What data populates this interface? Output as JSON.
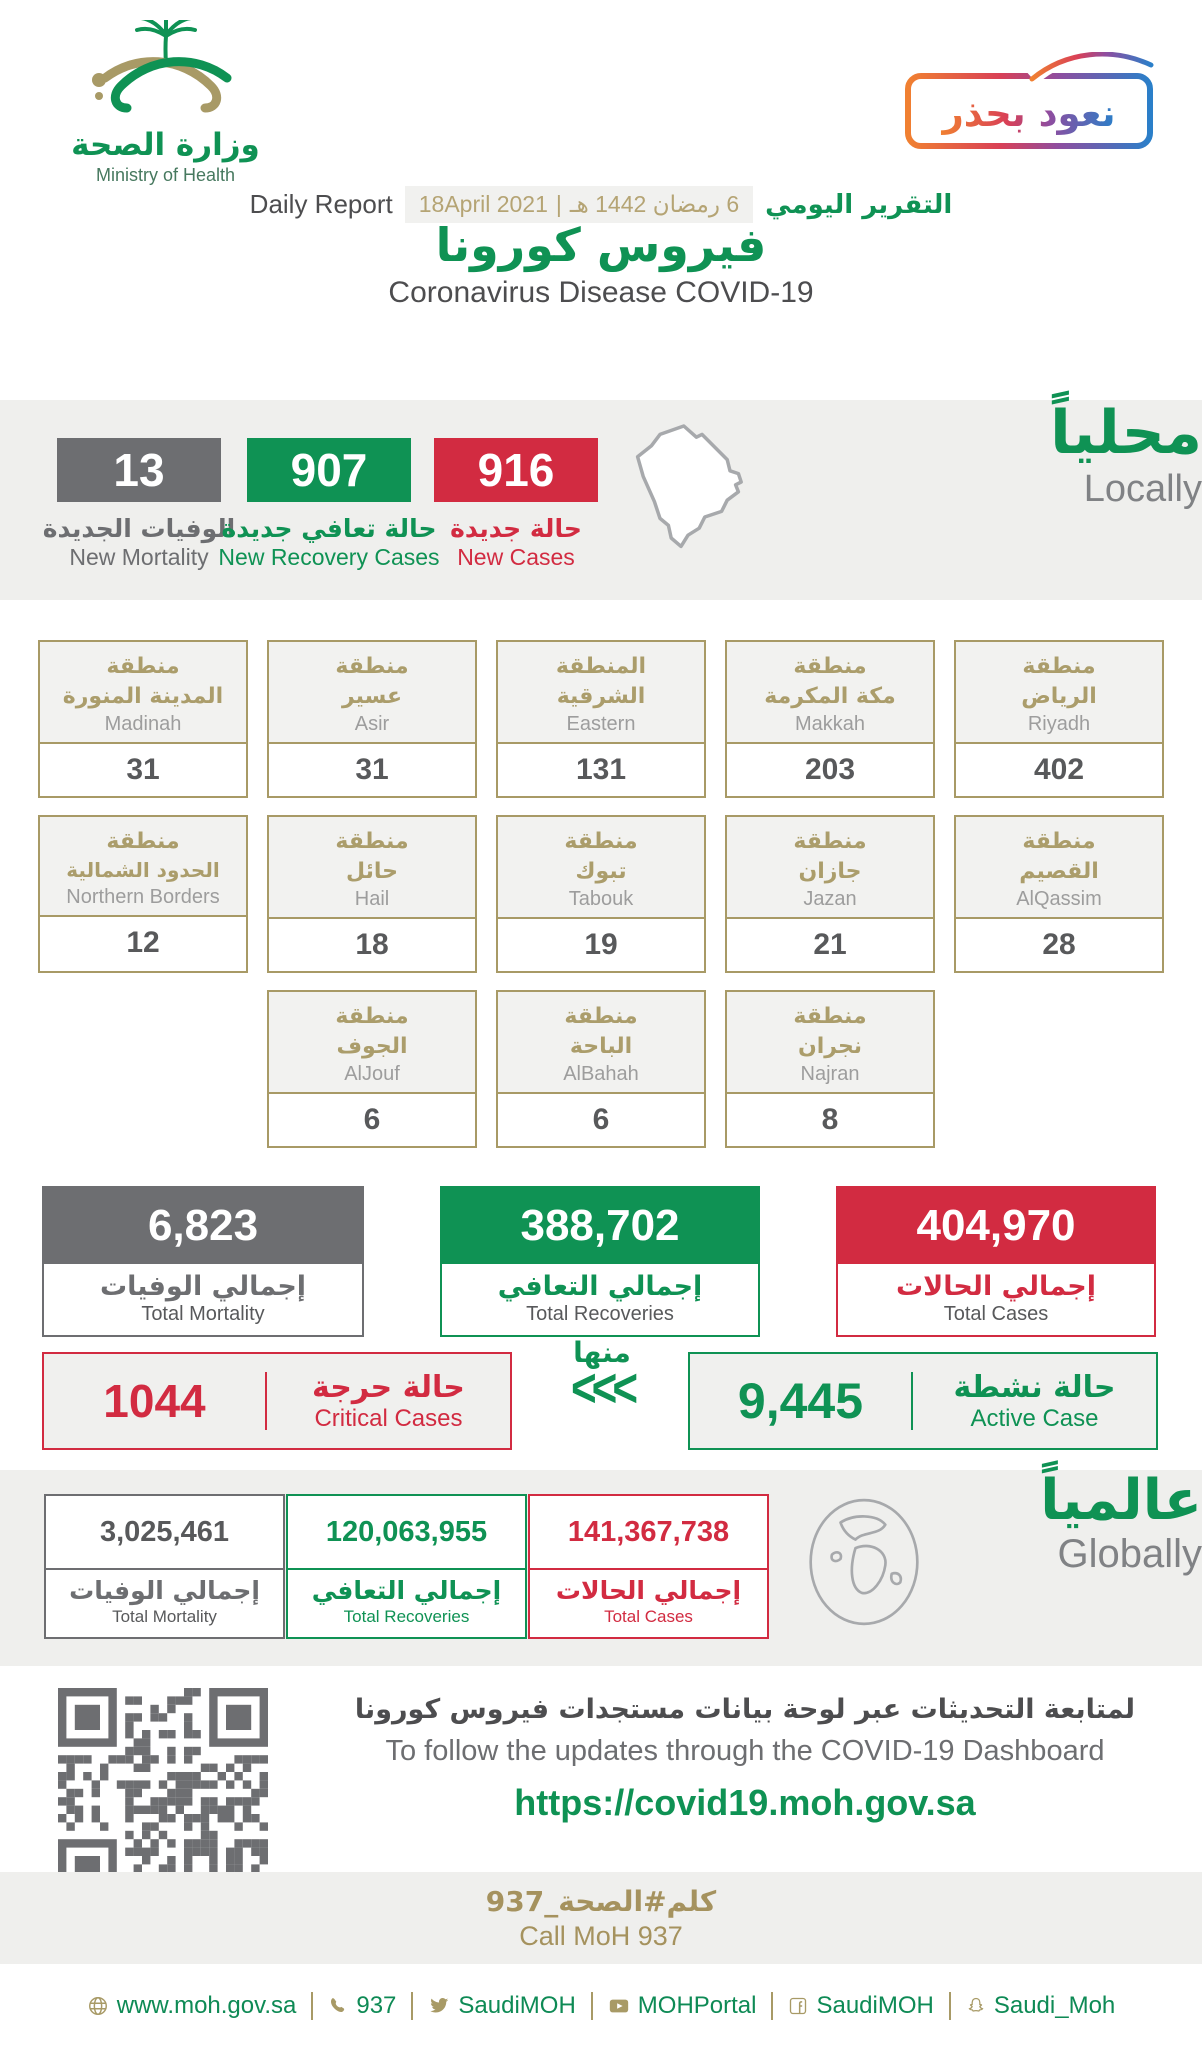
{
  "colors": {
    "green": "#0f9254",
    "red": "#d22b41",
    "gray": "#6d6e71",
    "gold": "#a89a66",
    "band_bg": "#efefed"
  },
  "header": {
    "logo_ar": "وزارة الصحة",
    "logo_en": "Ministry of Health",
    "badge_text": "نعود بحذر",
    "report_label_en": "Daily Report",
    "date_gregorian": "18April 2021",
    "date_separator": "|",
    "date_hijri": "6 رمضان 1442 هـ",
    "report_label_ar": "التقرير اليومي",
    "title_ar": "فيروس كورونا",
    "title_en": "Coronavirus Disease COVID-19"
  },
  "locally": {
    "title_ar": "محلياً",
    "title_en": "Locally",
    "stats": [
      {
        "value": "13",
        "label_ar": "الوفيات الجديدة",
        "label_en": "New Mortality"
      },
      {
        "value": "907",
        "label_ar": "حالة تعافي جديدة",
        "label_en": "New Recovery Cases"
      },
      {
        "value": "916",
        "label_ar": "حالة جديدة",
        "label_en": "New Cases"
      }
    ]
  },
  "regions": {
    "row1": [
      {
        "ar1": "منطقة",
        "ar2": "المدينة المنورة",
        "en": "Madinah",
        "value": "31"
      },
      {
        "ar1": "منطقة",
        "ar2": "عسير",
        "en": "Asir",
        "value": "31"
      },
      {
        "ar1": "المنطقة",
        "ar2": "الشرقية",
        "en": "Eastern",
        "value": "131"
      },
      {
        "ar1": "منطقة",
        "ar2": "مكة المكرمة",
        "en": "Makkah",
        "value": "203"
      },
      {
        "ar1": "منطقة",
        "ar2": "الرياض",
        "en": "Riyadh",
        "value": "402"
      }
    ],
    "row2": [
      {
        "ar1": "منطقة",
        "ar2": "الحدود الشمالية",
        "en": "Northern Borders",
        "value": "12"
      },
      {
        "ar1": "منطقة",
        "ar2": "حائل",
        "en": "Hail",
        "value": "18"
      },
      {
        "ar1": "منطقة",
        "ar2": "تبوك",
        "en": "Tabouk",
        "value": "19"
      },
      {
        "ar1": "منطقة",
        "ar2": "جازان",
        "en": "Jazan",
        "value": "21"
      },
      {
        "ar1": "منطقة",
        "ar2": "القصيم",
        "en": "AlQassim",
        "value": "28"
      }
    ],
    "row3": [
      {
        "ar1": "منطقة",
        "ar2": "الجوف",
        "en": "AlJouf",
        "value": "6"
      },
      {
        "ar1": "منطقة",
        "ar2": "الباحة",
        "en": "AlBahah",
        "value": "6"
      },
      {
        "ar1": "منطقة",
        "ar2": "نجران",
        "en": "Najran",
        "value": "8"
      }
    ]
  },
  "local_totals": [
    {
      "value": "6,823",
      "label_ar": "إجمالي الوفيات",
      "label_en": "Total Mortality"
    },
    {
      "value": "388,702",
      "label_ar": "إجمالي التعافي",
      "label_en": "Total Recoveries"
    },
    {
      "value": "404,970",
      "label_ar": "إجمالي الحالات",
      "label_en": "Total Cases"
    }
  ],
  "critical_active": {
    "critical": {
      "value": "1044",
      "label_ar": "حالة حرجة",
      "label_en": "Critical Cases"
    },
    "of_which_ar": "منها",
    "chevrons": "<<<",
    "active": {
      "value": "9,445",
      "label_ar": "حالة نشطة",
      "label_en": "Active Case"
    }
  },
  "globally": {
    "title_ar": "عالمياً",
    "title_en": "Globally",
    "totals": [
      {
        "value": "3,025,461",
        "label_ar": "إجمالي الوفيات",
        "label_en": "Total Mortality"
      },
      {
        "value": "120,063,955",
        "label_ar": "إجمالي التعافي",
        "label_en": "Total Recoveries"
      },
      {
        "value": "141,367,738",
        "label_ar": "إجمالي الحالات",
        "label_en": "Total Cases"
      }
    ]
  },
  "dashboard": {
    "line_ar": "لمتابعة التحديثات عبر لوحة بيانات مستجدات فيروس كورونا",
    "line_en": "To follow the updates through the COVID-19 Dashboard",
    "url": "https://covid19.moh.gov.sa"
  },
  "call": {
    "ar": "كلم#الصحة_937",
    "en": "Call MoH 937"
  },
  "footer": {
    "items": [
      {
        "icon": "globe-icon",
        "text": "www.moh.gov.sa"
      },
      {
        "icon": "phone-icon",
        "text": "937"
      },
      {
        "icon": "twitter-icon",
        "text": "SaudiMOH"
      },
      {
        "icon": "youtube-icon",
        "text": "MOHPortal"
      },
      {
        "icon": "facebook-icon",
        "text": "SaudiMOH"
      },
      {
        "icon": "snapchat-icon",
        "text": "Saudi_Moh"
      }
    ]
  }
}
